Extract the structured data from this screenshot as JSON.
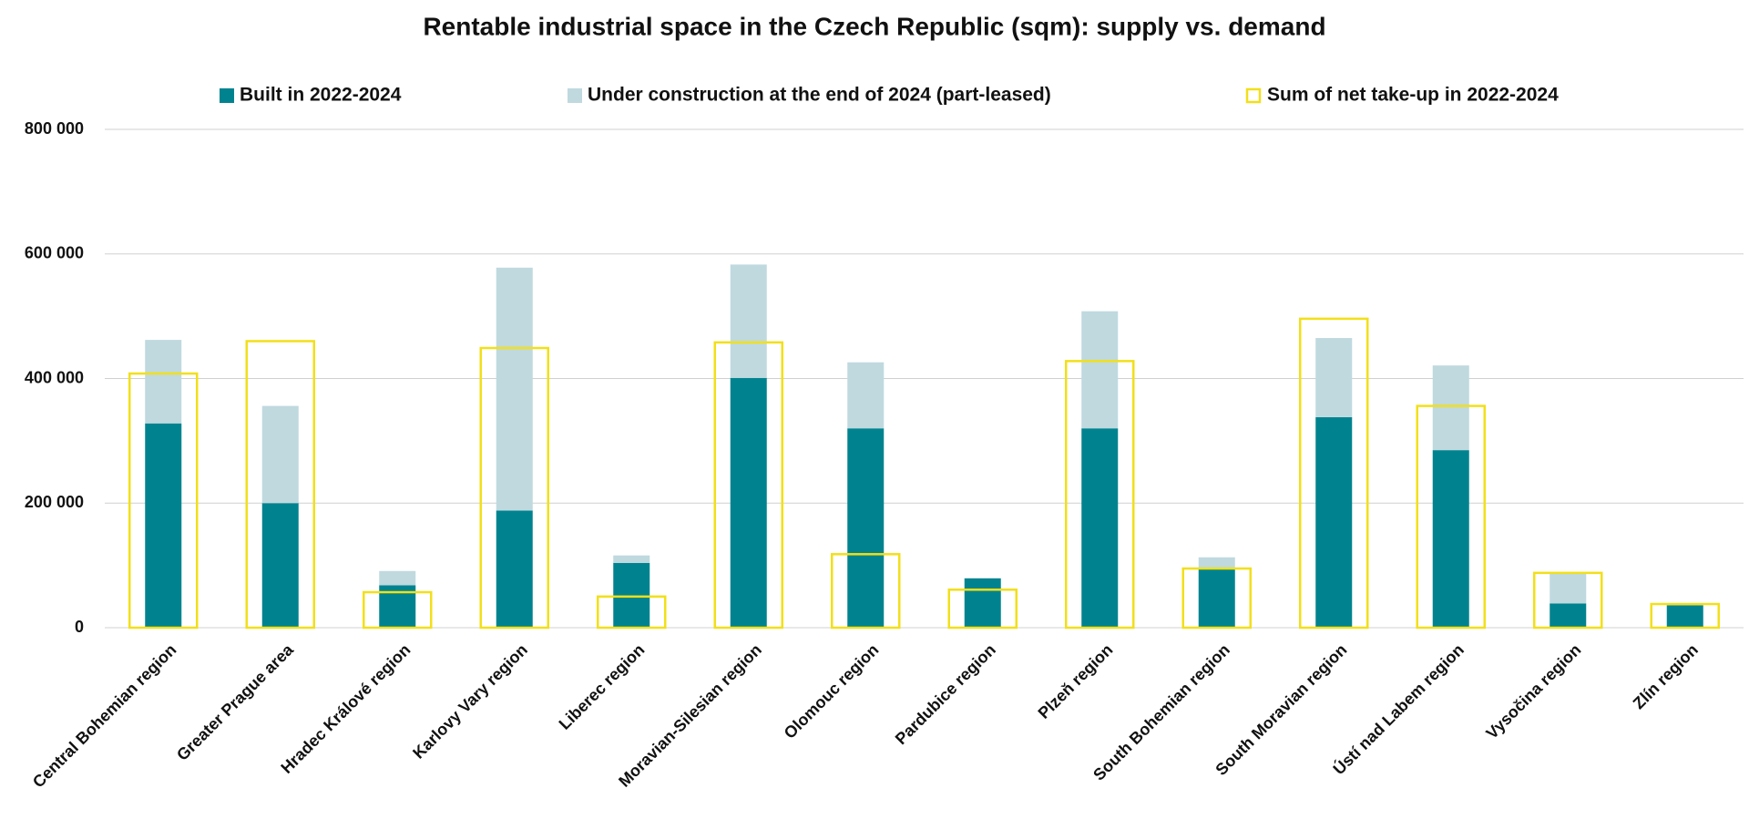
{
  "chart_data": {
    "type": "bar",
    "title": "Rentable industrial space in the Czech Republic (sqm): supply vs. demand",
    "categories": [
      "Central Bohemian region",
      "Greater Prague area",
      "Hradec Králové region",
      "Karlovy Vary region",
      "Liberec region",
      "Moravian-Silesian region",
      "Olomouc region",
      "Pardubice region",
      "Plzeň region",
      "South Bohemian region",
      "South Moravian region",
      "Ústí nad Labem region",
      "Vysočina region",
      "Zlín region"
    ],
    "series": [
      {
        "name": "Built in 2022-2024",
        "color": "#00838f",
        "stacked": true,
        "values": [
          328000,
          200000,
          68000,
          188000,
          104000,
          401000,
          320000,
          79000,
          320000,
          95000,
          338000,
          285000,
          39000,
          36000
        ]
      },
      {
        "name": "Under construction at the end of 2024 (part-leased)",
        "color": "#bfd9df",
        "stacked": true,
        "values": [
          134000,
          156000,
          23000,
          390000,
          12000,
          182000,
          106000,
          1000,
          188000,
          18000,
          127000,
          136000,
          49000,
          3000
        ]
      },
      {
        "name": "Sum of net take-up in 2022-2024",
        "color": "#f2df1a",
        "outline": true,
        "values": [
          408000,
          460000,
          57000,
          449000,
          50000,
          458000,
          118000,
          61000,
          428000,
          95000,
          496000,
          356000,
          88000,
          38000
        ]
      }
    ],
    "ylim": [
      0,
      800000
    ],
    "yticks": [
      0,
      {
        "value": 200000,
        "label": "200 000"
      },
      {
        "value": 400000,
        "label": "400 000"
      },
      {
        "value": 600000,
        "label": "600 000"
      },
      {
        "value": 800000,
        "label": "800 000"
      }
    ],
    "grid": true,
    "legend": "top"
  }
}
